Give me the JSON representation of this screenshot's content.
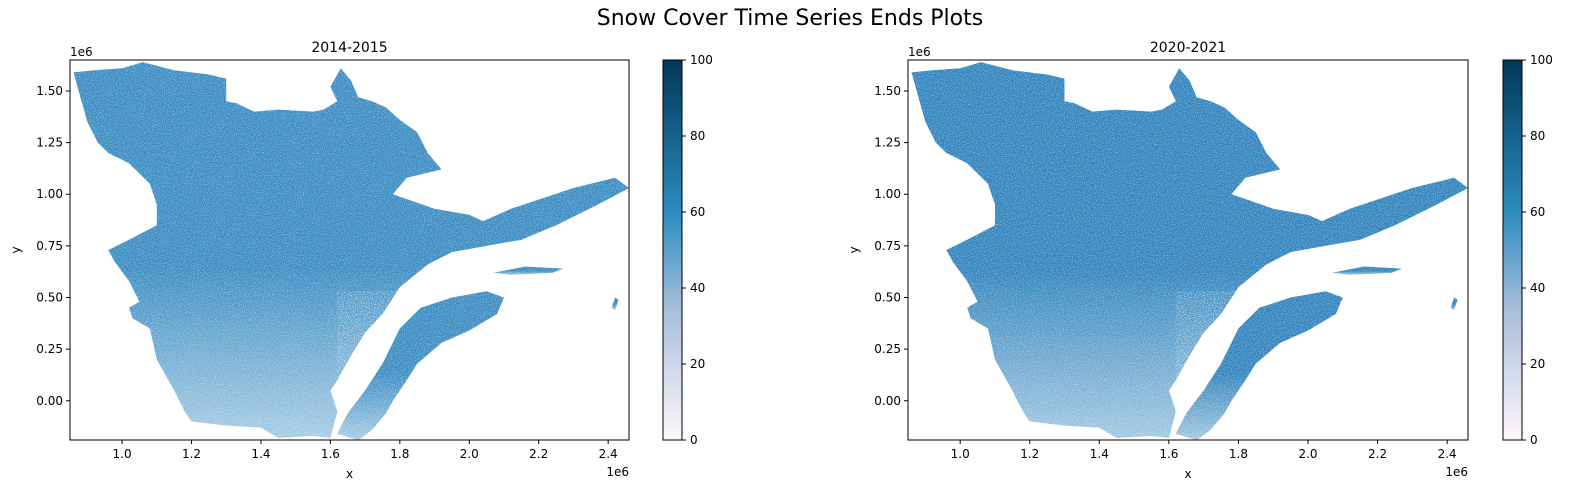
{
  "figure": {
    "suptitle": "Snow Cover Time Series Ends Plots"
  },
  "colors": {
    "cmap_low": "#fff7fb",
    "cmap_mid": "#a6bddb",
    "cmap_60": "#2b8cbe",
    "cmap_high": "#023858",
    "map_fill_2014": "#3a8cc2",
    "map_fill_2020": "#2f83bd"
  },
  "chart_data": [
    {
      "type": "heatmap",
      "title": "2014-2015",
      "xlabel": "x",
      "ylabel": "y",
      "x_offset_label": "1e6",
      "y_offset_label": "1e6",
      "xlim": [
        0.85,
        2.46
      ],
      "ylim": [
        -0.19,
        1.65
      ],
      "xticks": [
        1.0,
        1.2,
        1.4,
        1.6,
        1.8,
        2.0,
        2.2,
        2.4
      ],
      "xticklabels": [
        "1.0",
        "1.2",
        "1.4",
        "1.6",
        "1.8",
        "2.0",
        "2.2",
        "2.4"
      ],
      "yticks": [
        0.0,
        0.25,
        0.5,
        0.75,
        1.0,
        1.25,
        1.5
      ],
      "yticklabels": [
        "0.00",
        "0.25",
        "0.50",
        "0.75",
        "1.00",
        "1.25",
        "1.50"
      ],
      "colorbar": {
        "range": [
          0,
          100
        ],
        "ticks": [
          0,
          20,
          40,
          60,
          80,
          100
        ],
        "ticklabels": [
          "0",
          "20",
          "40",
          "60",
          "80",
          "100"
        ]
      }
    },
    {
      "type": "heatmap",
      "title": "2020-2021",
      "xlabel": "x",
      "ylabel": "y",
      "x_offset_label": "1e6",
      "y_offset_label": "1e6",
      "xlim": [
        0.85,
        2.46
      ],
      "ylim": [
        -0.19,
        1.65
      ],
      "xticks": [
        1.0,
        1.2,
        1.4,
        1.6,
        1.8,
        2.0,
        2.2,
        2.4
      ],
      "xticklabels": [
        "1.0",
        "1.2",
        "1.4",
        "1.6",
        "1.8",
        "2.0",
        "2.2",
        "2.4"
      ],
      "yticks": [
        0.0,
        0.25,
        0.5,
        0.75,
        1.0,
        1.25,
        1.5
      ],
      "yticklabels": [
        "0.00",
        "0.25",
        "0.50",
        "0.75",
        "1.00",
        "1.25",
        "1.50"
      ],
      "colorbar": {
        "range": [
          0,
          100
        ],
        "ticks": [
          0,
          20,
          40,
          60,
          80,
          100
        ],
        "ticklabels": [
          "0",
          "20",
          "40",
          "60",
          "80",
          "100"
        ]
      }
    }
  ]
}
